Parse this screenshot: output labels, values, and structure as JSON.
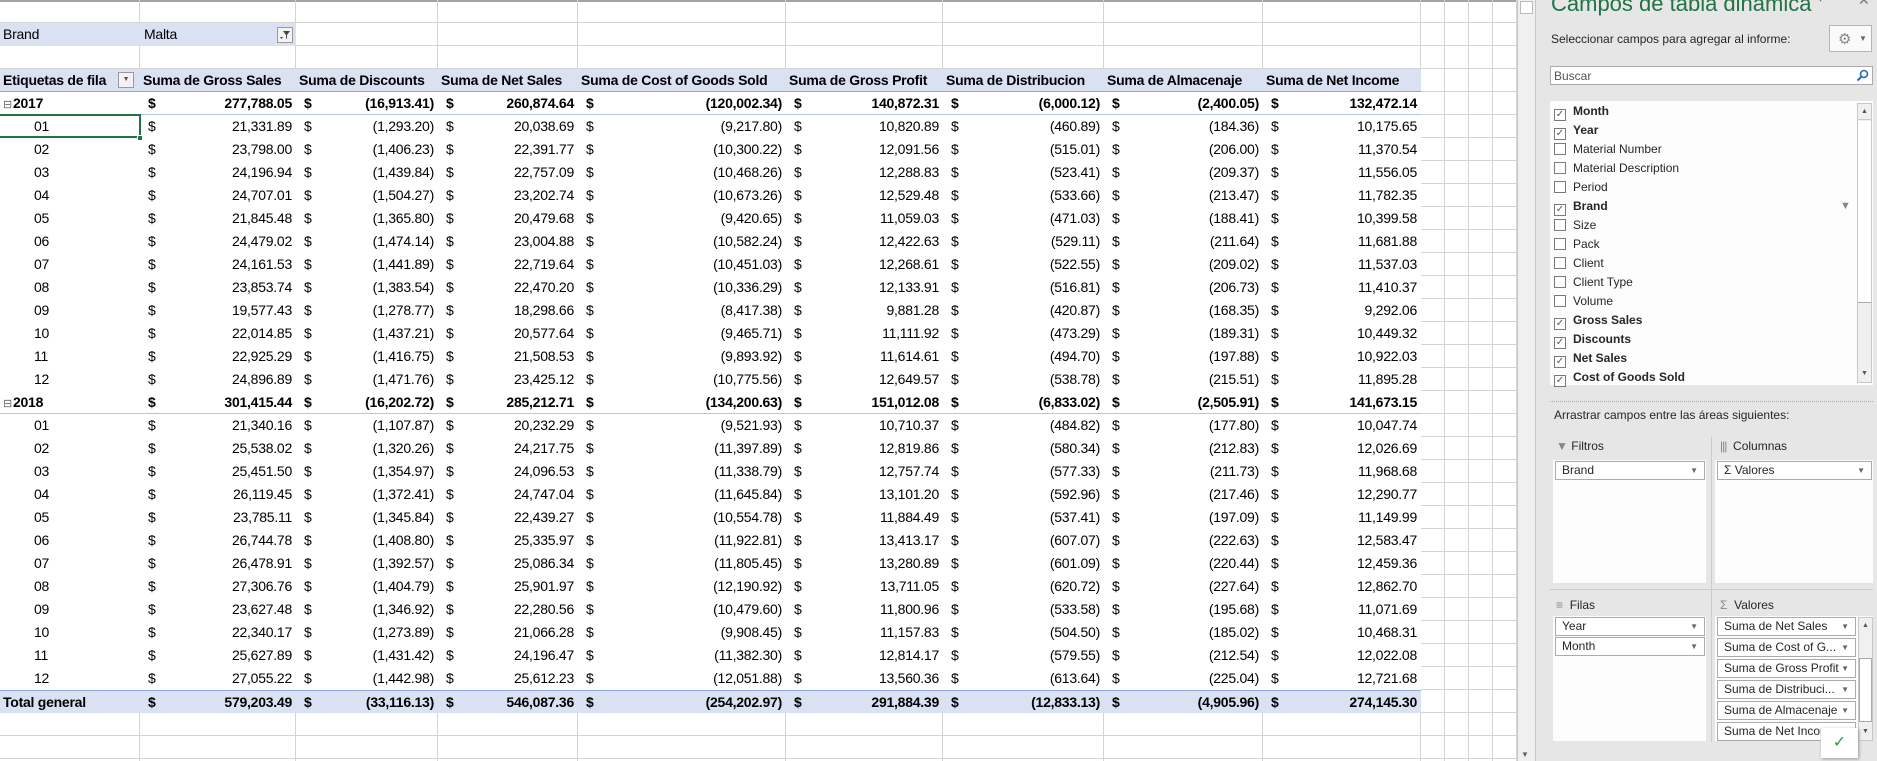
{
  "filter": {
    "label": "Brand",
    "value": "Malta"
  },
  "pivot": {
    "headers": [
      "Etiquetas de fila",
      "Suma de Gross Sales",
      "Suma de Discounts",
      "Suma de Net Sales",
      "Suma de Cost of Goods Sold",
      "Suma de Gross Profit",
      "Suma de Distribucion",
      "Suma de Almacenaje",
      "Suma de Net Income"
    ],
    "currency": "$",
    "rows": [
      {
        "label": "2017",
        "type": "year",
        "values": [
          "277,788.05",
          "(16,913.41)",
          "260,874.64",
          "(120,002.34)",
          "140,872.31",
          "(6,000.12)",
          "(2,400.05)",
          "132,472.14"
        ]
      },
      {
        "label": "01",
        "values": [
          "21,331.89",
          "(1,293.20)",
          "20,038.69",
          "(9,217.80)",
          "10,820.89",
          "(460.89)",
          "(184.36)",
          "10,175.65"
        ]
      },
      {
        "label": "02",
        "values": [
          "23,798.00",
          "(1,406.23)",
          "22,391.77",
          "(10,300.22)",
          "12,091.56",
          "(515.01)",
          "(206.00)",
          "11,370.54"
        ]
      },
      {
        "label": "03",
        "values": [
          "24,196.94",
          "(1,439.84)",
          "22,757.09",
          "(10,468.26)",
          "12,288.83",
          "(523.41)",
          "(209.37)",
          "11,556.05"
        ]
      },
      {
        "label": "04",
        "values": [
          "24,707.01",
          "(1,504.27)",
          "23,202.74",
          "(10,673.26)",
          "12,529.48",
          "(533.66)",
          "(213.47)",
          "11,782.35"
        ]
      },
      {
        "label": "05",
        "values": [
          "21,845.48",
          "(1,365.80)",
          "20,479.68",
          "(9,420.65)",
          "11,059.03",
          "(471.03)",
          "(188.41)",
          "10,399.58"
        ]
      },
      {
        "label": "06",
        "values": [
          "24,479.02",
          "(1,474.14)",
          "23,004.88",
          "(10,582.24)",
          "12,422.63",
          "(529.11)",
          "(211.64)",
          "11,681.88"
        ]
      },
      {
        "label": "07",
        "values": [
          "24,161.53",
          "(1,441.89)",
          "22,719.64",
          "(10,451.03)",
          "12,268.61",
          "(522.55)",
          "(209.02)",
          "11,537.03"
        ]
      },
      {
        "label": "08",
        "values": [
          "23,853.74",
          "(1,383.54)",
          "22,470.20",
          "(10,336.29)",
          "12,133.91",
          "(516.81)",
          "(206.73)",
          "11,410.37"
        ]
      },
      {
        "label": "09",
        "values": [
          "19,577.43",
          "(1,278.77)",
          "18,298.66",
          "(8,417.38)",
          "9,881.28",
          "(420.87)",
          "(168.35)",
          "9,292.06"
        ]
      },
      {
        "label": "10",
        "values": [
          "22,014.85",
          "(1,437.21)",
          "20,577.64",
          "(9,465.71)",
          "11,111.92",
          "(473.29)",
          "(189.31)",
          "10,449.32"
        ]
      },
      {
        "label": "11",
        "values": [
          "22,925.29",
          "(1,416.75)",
          "21,508.53",
          "(9,893.92)",
          "11,614.61",
          "(494.70)",
          "(197.88)",
          "10,922.03"
        ]
      },
      {
        "label": "12",
        "values": [
          "24,896.89",
          "(1,471.76)",
          "23,425.12",
          "(10,775.56)",
          "12,649.57",
          "(538.78)",
          "(215.51)",
          "11,895.28"
        ]
      },
      {
        "label": "2018",
        "type": "year",
        "values": [
          "301,415.44",
          "(16,202.72)",
          "285,212.71",
          "(134,200.63)",
          "151,012.08",
          "(6,833.02)",
          "(2,505.91)",
          "141,673.15"
        ]
      },
      {
        "label": "01",
        "values": [
          "21,340.16",
          "(1,107.87)",
          "20,232.29",
          "(9,521.93)",
          "10,710.37",
          "(484.82)",
          "(177.80)",
          "10,047.74"
        ]
      },
      {
        "label": "02",
        "values": [
          "25,538.02",
          "(1,320.26)",
          "24,217.75",
          "(11,397.89)",
          "12,819.86",
          "(580.34)",
          "(212.83)",
          "12,026.69"
        ]
      },
      {
        "label": "03",
        "values": [
          "25,451.50",
          "(1,354.97)",
          "24,096.53",
          "(11,338.79)",
          "12,757.74",
          "(577.33)",
          "(211.73)",
          "11,968.68"
        ]
      },
      {
        "label": "04",
        "values": [
          "26,119.45",
          "(1,372.41)",
          "24,747.04",
          "(11,645.84)",
          "13,101.20",
          "(592.96)",
          "(217.46)",
          "12,290.77"
        ]
      },
      {
        "label": "05",
        "values": [
          "23,785.11",
          "(1,345.84)",
          "22,439.27",
          "(10,554.78)",
          "11,884.49",
          "(537.41)",
          "(197.09)",
          "11,149.99"
        ]
      },
      {
        "label": "06",
        "values": [
          "26,744.78",
          "(1,408.80)",
          "25,335.97",
          "(11,922.81)",
          "13,413.17",
          "(607.07)",
          "(222.63)",
          "12,583.47"
        ]
      },
      {
        "label": "07",
        "values": [
          "26,478.91",
          "(1,392.57)",
          "25,086.34",
          "(11,805.45)",
          "13,280.89",
          "(601.09)",
          "(220.44)",
          "12,459.36"
        ]
      },
      {
        "label": "08",
        "values": [
          "27,306.76",
          "(1,404.79)",
          "25,901.97",
          "(12,190.92)",
          "13,711.05",
          "(620.72)",
          "(227.64)",
          "12,862.70"
        ]
      },
      {
        "label": "09",
        "values": [
          "23,627.48",
          "(1,346.92)",
          "22,280.56",
          "(10,479.60)",
          "11,800.96",
          "(533.58)",
          "(195.68)",
          "11,071.69"
        ]
      },
      {
        "label": "10",
        "values": [
          "22,340.17",
          "(1,273.89)",
          "21,066.28",
          "(9,908.45)",
          "11,157.83",
          "(504.50)",
          "(185.02)",
          "10,468.31"
        ]
      },
      {
        "label": "11",
        "values": [
          "25,627.89",
          "(1,431.42)",
          "24,196.47",
          "(11,382.30)",
          "12,814.17",
          "(579.55)",
          "(212.54)",
          "12,022.08"
        ]
      },
      {
        "label": "12",
        "values": [
          "27,055.22",
          "(1,442.98)",
          "25,612.23",
          "(12,051.88)",
          "13,560.36",
          "(613.64)",
          "(225.04)",
          "12,721.68"
        ]
      },
      {
        "label": "Total general",
        "type": "total",
        "values": [
          "579,203.49",
          "(33,116.13)",
          "546,087.36",
          "(254,202.97)",
          "291,884.39",
          "(12,833.13)",
          "(4,905.96)",
          "274,145.30"
        ]
      }
    ]
  },
  "panel": {
    "title": "Campos de tabla dinámica",
    "subtitle": "Seleccionar campos para agregar al informe:",
    "search_placeholder": "Buscar",
    "fields": [
      {
        "label": "Month",
        "checked": true
      },
      {
        "label": "Year",
        "checked": true
      },
      {
        "label": "Material Number",
        "checked": false
      },
      {
        "label": "Material Description",
        "checked": false
      },
      {
        "label": "Period",
        "checked": false
      },
      {
        "label": "Brand",
        "checked": true,
        "filtered": true
      },
      {
        "label": "Size",
        "checked": false
      },
      {
        "label": "Pack",
        "checked": false
      },
      {
        "label": "Client",
        "checked": false
      },
      {
        "label": "Client Type",
        "checked": false
      },
      {
        "label": "Volume",
        "checked": false
      },
      {
        "label": "Gross Sales",
        "checked": true
      },
      {
        "label": "Discounts",
        "checked": true
      },
      {
        "label": "Net Sales",
        "checked": true
      },
      {
        "label": "Cost of Goods Sold",
        "checked": true
      }
    ],
    "areas_label": "Arrastrar campos entre las áreas siguientes:",
    "filters": {
      "label": "Filtros",
      "items": [
        "Brand"
      ]
    },
    "columns": {
      "label": "Columnas",
      "items": [
        "Σ Valores"
      ]
    },
    "rows": {
      "label": "Filas",
      "items": [
        "Year",
        "Month"
      ]
    },
    "values": {
      "label": "Valores",
      "items": [
        "Suma de Net Sales",
        "Suma de Cost of G...",
        "Suma de Gross Profit",
        "Suma de Distribuci...",
        "Suma de Almacenaje",
        "Suma de Net Incor"
      ]
    },
    "accent_color": "#217346"
  }
}
